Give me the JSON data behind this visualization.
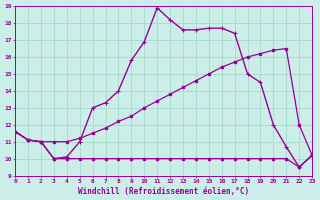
{
  "xlabel": "Windchill (Refroidissement éolien,°C)",
  "xlim": [
    0,
    23
  ],
  "ylim": [
    9,
    19
  ],
  "xticks": [
    0,
    1,
    2,
    3,
    4,
    5,
    6,
    7,
    8,
    9,
    10,
    11,
    12,
    13,
    14,
    15,
    16,
    17,
    18,
    19,
    20,
    21,
    22,
    23
  ],
  "yticks": [
    9,
    10,
    11,
    12,
    13,
    14,
    15,
    16,
    17,
    18,
    19
  ],
  "bg_color": "#cceee8",
  "grid_color": "#aaddcc",
  "line_color": "#990099",
  "line1_x": [
    0,
    1,
    2,
    3,
    4,
    5,
    6,
    7,
    8,
    9,
    10,
    11,
    12,
    13,
    14,
    15,
    16,
    17,
    18,
    19,
    20,
    21,
    22,
    23
  ],
  "line1_y": [
    11.6,
    11.1,
    11.0,
    10.0,
    10.0,
    10.0,
    10.0,
    10.0,
    10.0,
    10.0,
    10.0,
    10.0,
    10.0,
    10.0,
    10.0,
    10.0,
    10.0,
    10.0,
    10.0,
    10.0,
    10.0,
    10.0,
    9.5,
    10.2
  ],
  "line2_x": [
    0,
    1,
    2,
    3,
    4,
    5,
    6,
    7,
    8,
    9,
    10,
    11,
    12,
    13,
    14,
    15,
    16,
    17,
    18,
    19,
    20,
    21,
    22,
    23
  ],
  "line2_y": [
    11.6,
    11.1,
    11.0,
    11.0,
    11.0,
    11.2,
    11.5,
    11.8,
    12.2,
    12.5,
    13.0,
    13.4,
    13.8,
    14.2,
    14.6,
    15.0,
    15.4,
    15.7,
    16.0,
    16.2,
    16.4,
    16.5,
    12.0,
    10.2
  ],
  "line3_x": [
    0,
    1,
    2,
    3,
    4,
    5,
    6,
    7,
    8,
    9,
    10,
    11,
    12,
    13,
    14,
    15,
    16,
    17,
    18,
    19,
    20,
    21,
    22,
    23
  ],
  "line3_y": [
    11.6,
    11.1,
    11.0,
    10.0,
    10.1,
    11.0,
    13.0,
    13.3,
    14.0,
    15.8,
    16.9,
    18.9,
    18.2,
    17.6,
    17.6,
    17.7,
    17.7,
    17.4,
    15.0,
    14.5,
    12.0,
    10.7,
    9.5,
    10.2
  ]
}
